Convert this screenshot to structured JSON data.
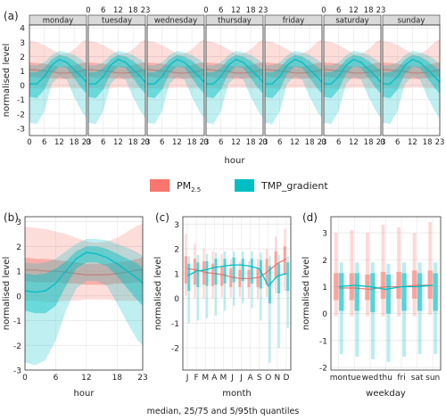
{
  "colors": {
    "pm": "#F8766D",
    "tmp": "#00BFC4",
    "grid": "#e6e6e6",
    "strip": "#d9d9d9"
  },
  "legend": {
    "pm_label": "PM",
    "pm_sub": "2.5",
    "tmp_label": "TMP_gradient"
  },
  "footer": "median, 25/75 and 5/95th quantiles",
  "panels": {
    "a": {
      "tag": "(a)"
    },
    "b": {
      "tag": "(b)"
    },
    "c": {
      "tag": "(c)"
    },
    "d": {
      "tag": "(d)"
    }
  },
  "chart_data": [
    {
      "type": "area",
      "panel": "a",
      "xlabel": "hour",
      "ylabel": "normalised level",
      "ylim": [
        -3.5,
        4.2
      ],
      "yticks": [
        -3,
        -2,
        -1,
        0,
        1,
        2,
        3,
        4
      ],
      "xticks": [
        "0",
        "6",
        "12",
        "18",
        "23"
      ],
      "facets": [
        "monday",
        "tuesday",
        "wednesday",
        "thursday",
        "friday",
        "saturday",
        "sunday"
      ],
      "x": [
        0,
        3,
        6,
        9,
        12,
        15,
        18,
        21,
        23
      ],
      "series": [
        {
          "name": "PM2.5",
          "median": [
            1.1,
            1.05,
            1.0,
            0.95,
            0.85,
            0.85,
            0.9,
            1.0,
            1.1
          ],
          "q25": [
            0.6,
            0.55,
            0.5,
            0.5,
            0.45,
            0.45,
            0.5,
            0.55,
            0.6
          ],
          "q75": [
            1.6,
            1.55,
            1.5,
            1.4,
            1.3,
            1.3,
            1.4,
            1.55,
            1.6
          ],
          "q05": [
            -0.2,
            -0.2,
            -0.25,
            -0.2,
            -0.15,
            -0.15,
            -0.2,
            -0.2,
            -0.2
          ],
          "q95": [
            3.1,
            3.0,
            2.8,
            2.5,
            2.2,
            2.2,
            2.5,
            3.0,
            3.2
          ]
        },
        {
          "name": "TMP_gradient",
          "median": [
            0.1,
            0.1,
            0.6,
            1.4,
            1.8,
            1.6,
            1.1,
            0.6,
            0.2
          ],
          "q25": [
            -0.8,
            -0.9,
            -0.3,
            0.8,
            1.3,
            1.2,
            0.5,
            -0.2,
            -0.6
          ],
          "q75": [
            0.9,
            0.9,
            1.2,
            1.8,
            2.1,
            2.0,
            1.7,
            1.3,
            1.0
          ],
          "q05": [
            -2.6,
            -2.7,
            -1.8,
            0.1,
            0.6,
            0.4,
            -0.8,
            -1.8,
            -2.3
          ],
          "q95": [
            1.4,
            1.4,
            1.6,
            2.1,
            2.4,
            2.3,
            2.1,
            1.8,
            1.5
          ]
        }
      ]
    },
    {
      "type": "area",
      "panel": "b",
      "xlabel": "hour",
      "ylabel": "normalised level",
      "ylim": [
        -3,
        3.2
      ],
      "yticks": [
        -3,
        -2,
        -1,
        0,
        1,
        2,
        3
      ],
      "xticks": [
        "0",
        "6",
        "12",
        "18",
        "23"
      ],
      "x": [
        0,
        2,
        4,
        6,
        8,
        10,
        12,
        14,
        16,
        18,
        20,
        22,
        23
      ],
      "series": [
        {
          "name": "PM2.5",
          "median": [
            1.05,
            1.05,
            1.0,
            1.0,
            0.95,
            0.9,
            0.85,
            0.85,
            0.85,
            0.9,
            0.95,
            1.05,
            1.05
          ],
          "q25": [
            0.6,
            0.55,
            0.55,
            0.55,
            0.5,
            0.5,
            0.45,
            0.45,
            0.45,
            0.5,
            0.5,
            0.55,
            0.6
          ],
          "q75": [
            1.55,
            1.5,
            1.5,
            1.45,
            1.4,
            1.35,
            1.3,
            1.3,
            1.3,
            1.35,
            1.4,
            1.5,
            1.55
          ],
          "q05": [
            -0.2,
            -0.2,
            -0.25,
            -0.25,
            -0.2,
            -0.2,
            -0.15,
            -0.15,
            -0.15,
            -0.2,
            -0.2,
            -0.2,
            -0.2
          ],
          "q95": [
            2.8,
            2.75,
            2.7,
            2.6,
            2.5,
            2.35,
            2.2,
            2.15,
            2.2,
            2.35,
            2.6,
            2.85,
            2.9
          ]
        },
        {
          "name": "TMP_gradient",
          "median": [
            0.2,
            0.15,
            0.2,
            0.5,
            1.0,
            1.5,
            1.75,
            1.7,
            1.55,
            1.3,
            1.0,
            0.7,
            0.5
          ],
          "q25": [
            -0.6,
            -0.7,
            -0.7,
            -0.4,
            0.4,
            1.1,
            1.35,
            1.35,
            1.2,
            0.8,
            0.3,
            -0.2,
            -0.4
          ],
          "q75": [
            0.9,
            0.85,
            0.9,
            1.1,
            1.4,
            1.8,
            2.0,
            2.0,
            1.9,
            1.7,
            1.5,
            1.3,
            1.1
          ],
          "q05": [
            -2.7,
            -2.8,
            -2.6,
            -1.8,
            -0.6,
            0.3,
            0.6,
            0.6,
            0.4,
            -0.3,
            -1.1,
            -1.8,
            -2.0
          ],
          "q95": [
            1.35,
            1.3,
            1.35,
            1.5,
            1.8,
            2.1,
            2.3,
            2.3,
            2.25,
            2.1,
            1.95,
            1.75,
            1.6
          ]
        }
      ]
    },
    {
      "type": "box",
      "panel": "c",
      "xlabel": "month",
      "ylabel": "normalised level",
      "ylim": [
        -2.9,
        3.3
      ],
      "yticks": [
        -2,
        -1,
        0,
        1,
        2,
        3
      ],
      "categories": [
        "J",
        "F",
        "M",
        "A",
        "M",
        "J",
        "J",
        "A",
        "S",
        "O",
        "N",
        "D"
      ],
      "series": [
        {
          "name": "PM2.5",
          "median": [
            1.2,
            1.15,
            1.05,
            1.0,
            0.95,
            0.85,
            0.8,
            0.8,
            0.85,
            1.1,
            1.4,
            1.6
          ],
          "q25": [
            0.6,
            0.55,
            0.55,
            0.5,
            0.5,
            0.45,
            0.45,
            0.45,
            0.45,
            0.55,
            0.8,
            0.95
          ],
          "q75": [
            1.7,
            1.6,
            1.5,
            1.4,
            1.3,
            1.2,
            1.15,
            1.15,
            1.2,
            1.6,
            1.9,
            2.1
          ],
          "q05": [
            0.1,
            0.0,
            0.0,
            0.0,
            0.05,
            0.05,
            0.05,
            0.0,
            0.0,
            0.05,
            0.2,
            0.3
          ],
          "q95": [
            2.6,
            2.2,
            2.0,
            1.9,
            1.8,
            1.6,
            1.5,
            1.5,
            1.6,
            2.0,
            2.5,
            2.8
          ]
        },
        {
          "name": "TMP_gradient",
          "median": [
            0.9,
            1.1,
            1.15,
            1.25,
            1.3,
            1.35,
            1.35,
            1.3,
            1.2,
            0.5,
            0.9,
            1.0
          ],
          "q25": [
            0.3,
            0.45,
            0.5,
            0.55,
            0.6,
            0.65,
            0.7,
            0.6,
            0.4,
            -0.2,
            0.2,
            0.3
          ],
          "q75": [
            1.4,
            1.45,
            1.5,
            1.6,
            1.6,
            1.65,
            1.6,
            1.6,
            1.55,
            1.3,
            1.4,
            1.45
          ],
          "q05": [
            -1.0,
            -0.9,
            -0.8,
            -0.7,
            -0.5,
            -0.3,
            -0.2,
            -0.4,
            -0.9,
            -2.6,
            -2.0,
            -1.2
          ],
          "q95": [
            1.7,
            1.75,
            1.8,
            1.85,
            1.9,
            1.9,
            1.9,
            1.9,
            1.85,
            1.7,
            1.75,
            1.7
          ]
        }
      ]
    },
    {
      "type": "box",
      "panel": "d",
      "xlabel": "weekday",
      "ylabel": "normalised level",
      "ylim": [
        -2.1,
        3.6
      ],
      "yticks": [
        -2,
        -1,
        0,
        1,
        2,
        3
      ],
      "categories": [
        "mon",
        "tue",
        "wed",
        "thu",
        "fri",
        "sat",
        "sun"
      ],
      "series": [
        {
          "name": "PM2.5",
          "median": [
            0.95,
            0.95,
            0.9,
            1.0,
            1.0,
            1.05,
            1.05
          ],
          "q25": [
            0.5,
            0.5,
            0.5,
            0.55,
            0.55,
            0.55,
            0.55
          ],
          "q75": [
            1.5,
            1.5,
            1.45,
            1.55,
            1.55,
            1.6,
            1.6
          ],
          "q05": [
            -0.1,
            -0.1,
            -0.1,
            -0.1,
            -0.1,
            -0.1,
            -0.05
          ],
          "q95": [
            3.0,
            3.1,
            3.0,
            3.3,
            3.2,
            3.0,
            3.4
          ]
        },
        {
          "name": "TMP_gradient",
          "median": [
            1.0,
            1.05,
            1.0,
            0.9,
            1.0,
            1.0,
            1.05
          ],
          "q25": [
            0.1,
            0.1,
            0.05,
            0.0,
            0.1,
            0.1,
            0.1
          ],
          "q75": [
            1.5,
            1.5,
            1.5,
            1.45,
            1.5,
            1.5,
            1.5
          ],
          "q05": [
            -1.5,
            -1.6,
            -1.7,
            -1.8,
            -1.6,
            -1.5,
            -1.5
          ],
          "q95": [
            1.9,
            1.9,
            1.9,
            1.85,
            1.9,
            1.9,
            1.9
          ]
        }
      ]
    }
  ]
}
